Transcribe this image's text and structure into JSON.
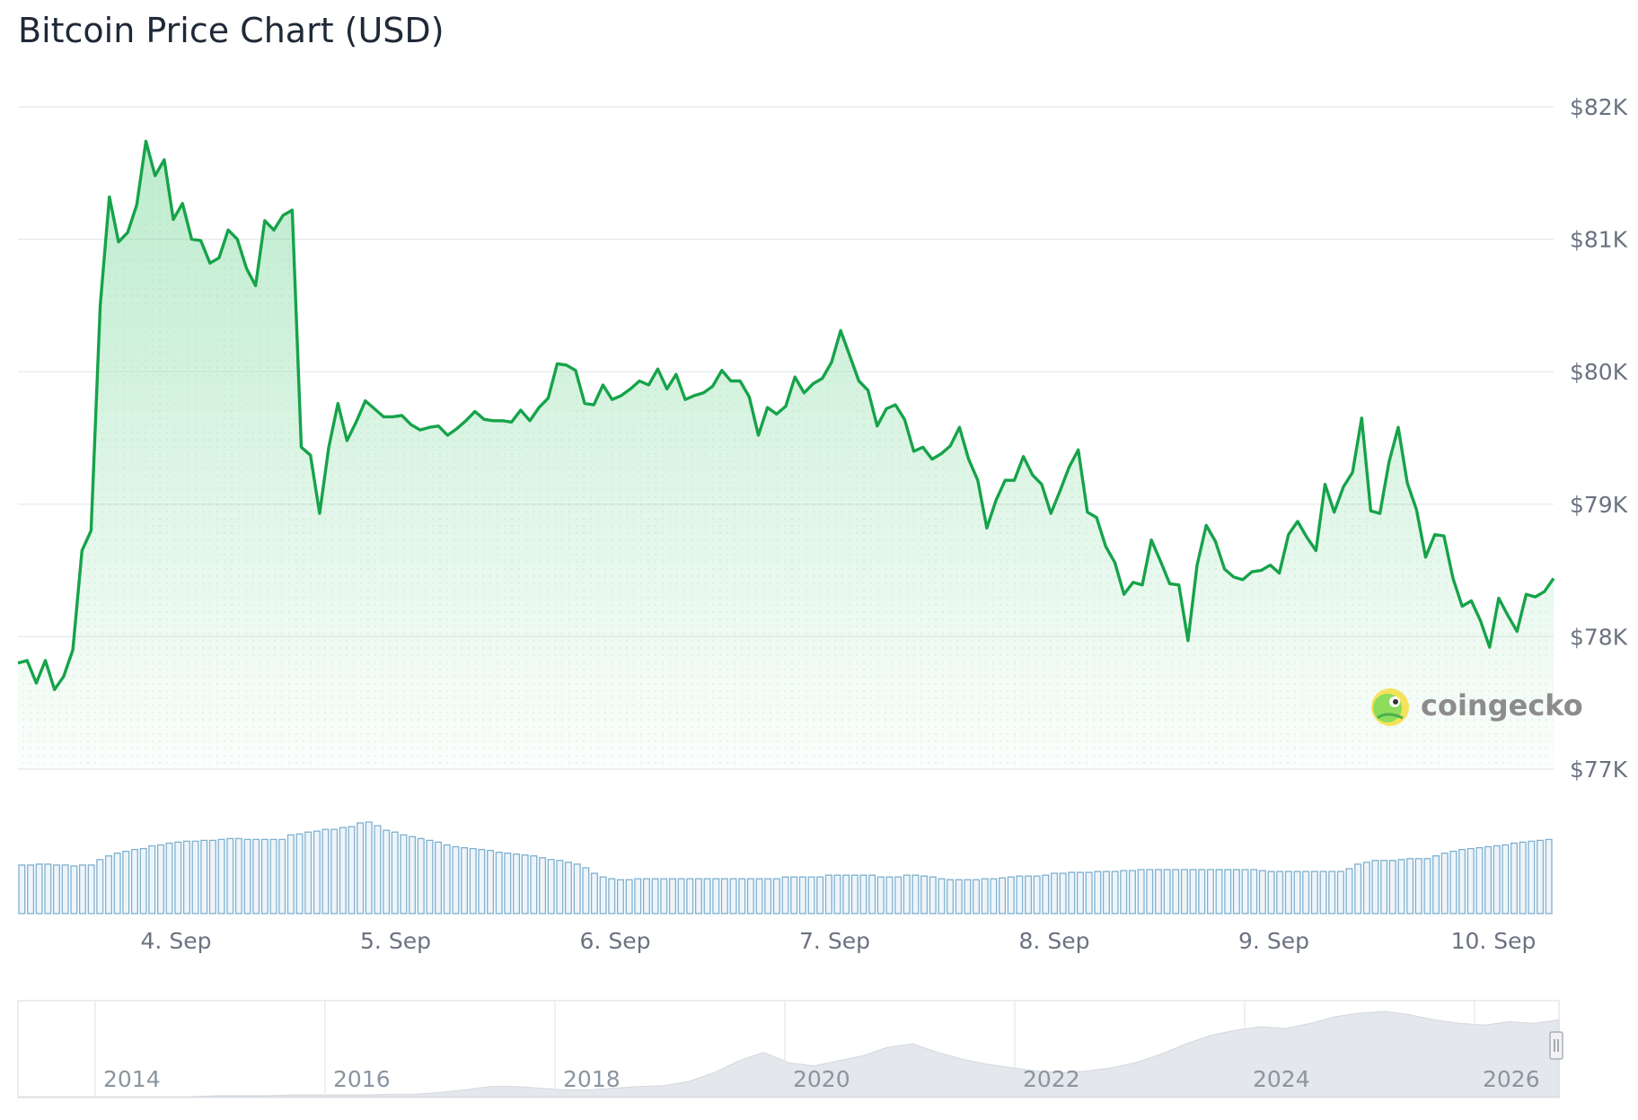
{
  "chart_data": {
    "type": "area",
    "title": "Bitcoin Price Chart (USD)",
    "series": [
      {
        "values": [
          77800,
          77820,
          77650,
          77820,
          77600,
          77700,
          77900,
          78650,
          78800,
          80500,
          81320,
          80980,
          81050,
          81260,
          81740,
          81480,
          81600,
          81150,
          81270,
          81000,
          80990,
          80820,
          80860,
          81070,
          81000,
          80780,
          80650,
          81140,
          81070,
          81180,
          81220,
          79430,
          79370,
          78930,
          79430,
          79760,
          79480,
          79620,
          79780,
          79720,
          79660,
          79660,
          79670,
          79600,
          79560,
          79580,
          79590,
          79520,
          79570,
          79630,
          79700,
          79640,
          79630,
          79630,
          79620,
          79710,
          79630,
          79730,
          79800,
          80060,
          80050,
          80010,
          79760,
          79750,
          79900,
          79790,
          79820,
          79870,
          79930,
          79900,
          80020,
          79870,
          79980,
          79790,
          79820,
          79840,
          79890,
          80010,
          79930,
          79930,
          79810,
          79520,
          79730,
          79680,
          79740,
          79960,
          79840,
          79910,
          79950,
          80070,
          80310,
          80120,
          79930,
          79860,
          79590,
          79720,
          79750,
          79640,
          79400,
          79430,
          79340,
          79380,
          79440,
          79580,
          79340,
          79180,
          78820,
          79030,
          79180,
          79180,
          79360,
          79220,
          79150,
          78930,
          79100,
          79280,
          79410,
          78940,
          78900,
          78680,
          78560,
          78320,
          78410,
          78390,
          78730,
          78570,
          78400,
          78390,
          77970,
          78540,
          78840,
          78720,
          78510,
          78450,
          78430,
          78490,
          78500,
          78540,
          78480,
          78770,
          78870,
          78750,
          78650,
          79150,
          78940,
          79130,
          79240,
          79650,
          78950,
          78930,
          79320,
          79580,
          79160,
          78960,
          78600,
          78770,
          78760,
          78440,
          78230,
          78270,
          78120,
          77920,
          78290,
          78160,
          78040,
          78320,
          78300,
          78340,
          78440
        ]
      }
    ],
    "volume": [
      0.53,
      0.53,
      0.54,
      0.54,
      0.53,
      0.53,
      0.52,
      0.53,
      0.53,
      0.59,
      0.63,
      0.66,
      0.68,
      0.7,
      0.71,
      0.74,
      0.75,
      0.77,
      0.78,
      0.79,
      0.79,
      0.8,
      0.8,
      0.81,
      0.82,
      0.82,
      0.81,
      0.81,
      0.81,
      0.81,
      0.81,
      0.86,
      0.87,
      0.89,
      0.9,
      0.92,
      0.92,
      0.94,
      0.95,
      0.99,
      1.0,
      0.96,
      0.91,
      0.89,
      0.86,
      0.84,
      0.82,
      0.8,
      0.78,
      0.75,
      0.73,
      0.72,
      0.71,
      0.7,
      0.69,
      0.67,
      0.66,
      0.65,
      0.64,
      0.63,
      0.61,
      0.59,
      0.58,
      0.56,
      0.54,
      0.5,
      0.44,
      0.4,
      0.38,
      0.37,
      0.37,
      0.38,
      0.38,
      0.38,
      0.38,
      0.38,
      0.38,
      0.38,
      0.38,
      0.38,
      0.38,
      0.38,
      0.38,
      0.38,
      0.38,
      0.38,
      0.38,
      0.38,
      0.4,
      0.4,
      0.4,
      0.4,
      0.4,
      0.42,
      0.42,
      0.42,
      0.42,
      0.42,
      0.42,
      0.4,
      0.4,
      0.4,
      0.42,
      0.42,
      0.41,
      0.4,
      0.38,
      0.37,
      0.37,
      0.37,
      0.37,
      0.38,
      0.38,
      0.39,
      0.4,
      0.41,
      0.41,
      0.41,
      0.42,
      0.44,
      0.44,
      0.45,
      0.45,
      0.45,
      0.46,
      0.46,
      0.46,
      0.47,
      0.47,
      0.48,
      0.48,
      0.48,
      0.48,
      0.48,
      0.48,
      0.48,
      0.48,
      0.48,
      0.48,
      0.48,
      0.48,
      0.48,
      0.48,
      0.47,
      0.46,
      0.46,
      0.46,
      0.46,
      0.46,
      0.46,
      0.46,
      0.46,
      0.46,
      0.49,
      0.54,
      0.56,
      0.58,
      0.58,
      0.58,
      0.59,
      0.6,
      0.6,
      0.6,
      0.63,
      0.66,
      0.68,
      0.7,
      0.71,
      0.72,
      0.73,
      0.74,
      0.75,
      0.77,
      0.78,
      0.79,
      0.8,
      0.81
    ],
    "ylim": [
      77000,
      82000
    ],
    "y_ticks": [
      "$82K",
      "$81K",
      "$80K",
      "$79K",
      "$78K",
      "$77K"
    ],
    "x_ticks": [
      "4. Sep",
      "5. Sep",
      "6. Sep",
      "7. Sep",
      "8. Sep",
      "9. Sep",
      "10. Sep"
    ],
    "navigator_ticks": [
      "2014",
      "2016",
      "2018",
      "2020",
      "2022",
      "2024",
      "2026"
    ],
    "navigator_series": [
      0,
      0,
      0,
      0,
      0,
      0,
      0,
      0,
      0.01,
      0.01,
      0.01,
      0.02,
      0.02,
      0.02,
      0.02,
      0.03,
      0.03,
      0.05,
      0.08,
      0.12,
      0.12,
      0.1,
      0.08,
      0.08,
      0.1,
      0.12,
      0.13,
      0.18,
      0.28,
      0.42,
      0.52,
      0.4,
      0.36,
      0.42,
      0.48,
      0.58,
      0.62,
      0.52,
      0.44,
      0.38,
      0.34,
      0.3,
      0.28,
      0.3,
      0.34,
      0.4,
      0.5,
      0.62,
      0.72,
      0.78,
      0.82,
      0.8,
      0.86,
      0.94,
      0.98,
      1.0,
      0.96,
      0.9,
      0.86,
      0.84,
      0.88,
      0.86,
      0.9
    ],
    "grid": true,
    "legend": "none",
    "colors": {
      "line": "#16a34a",
      "fill_top": "#86dca4",
      "volume": "#7fb0cf",
      "grid": "#e5e7eb",
      "navigator_fill": "#e4e7eb"
    }
  },
  "brand": {
    "name": "coingecko",
    "logo_icon": "gecko-logo-icon"
  }
}
